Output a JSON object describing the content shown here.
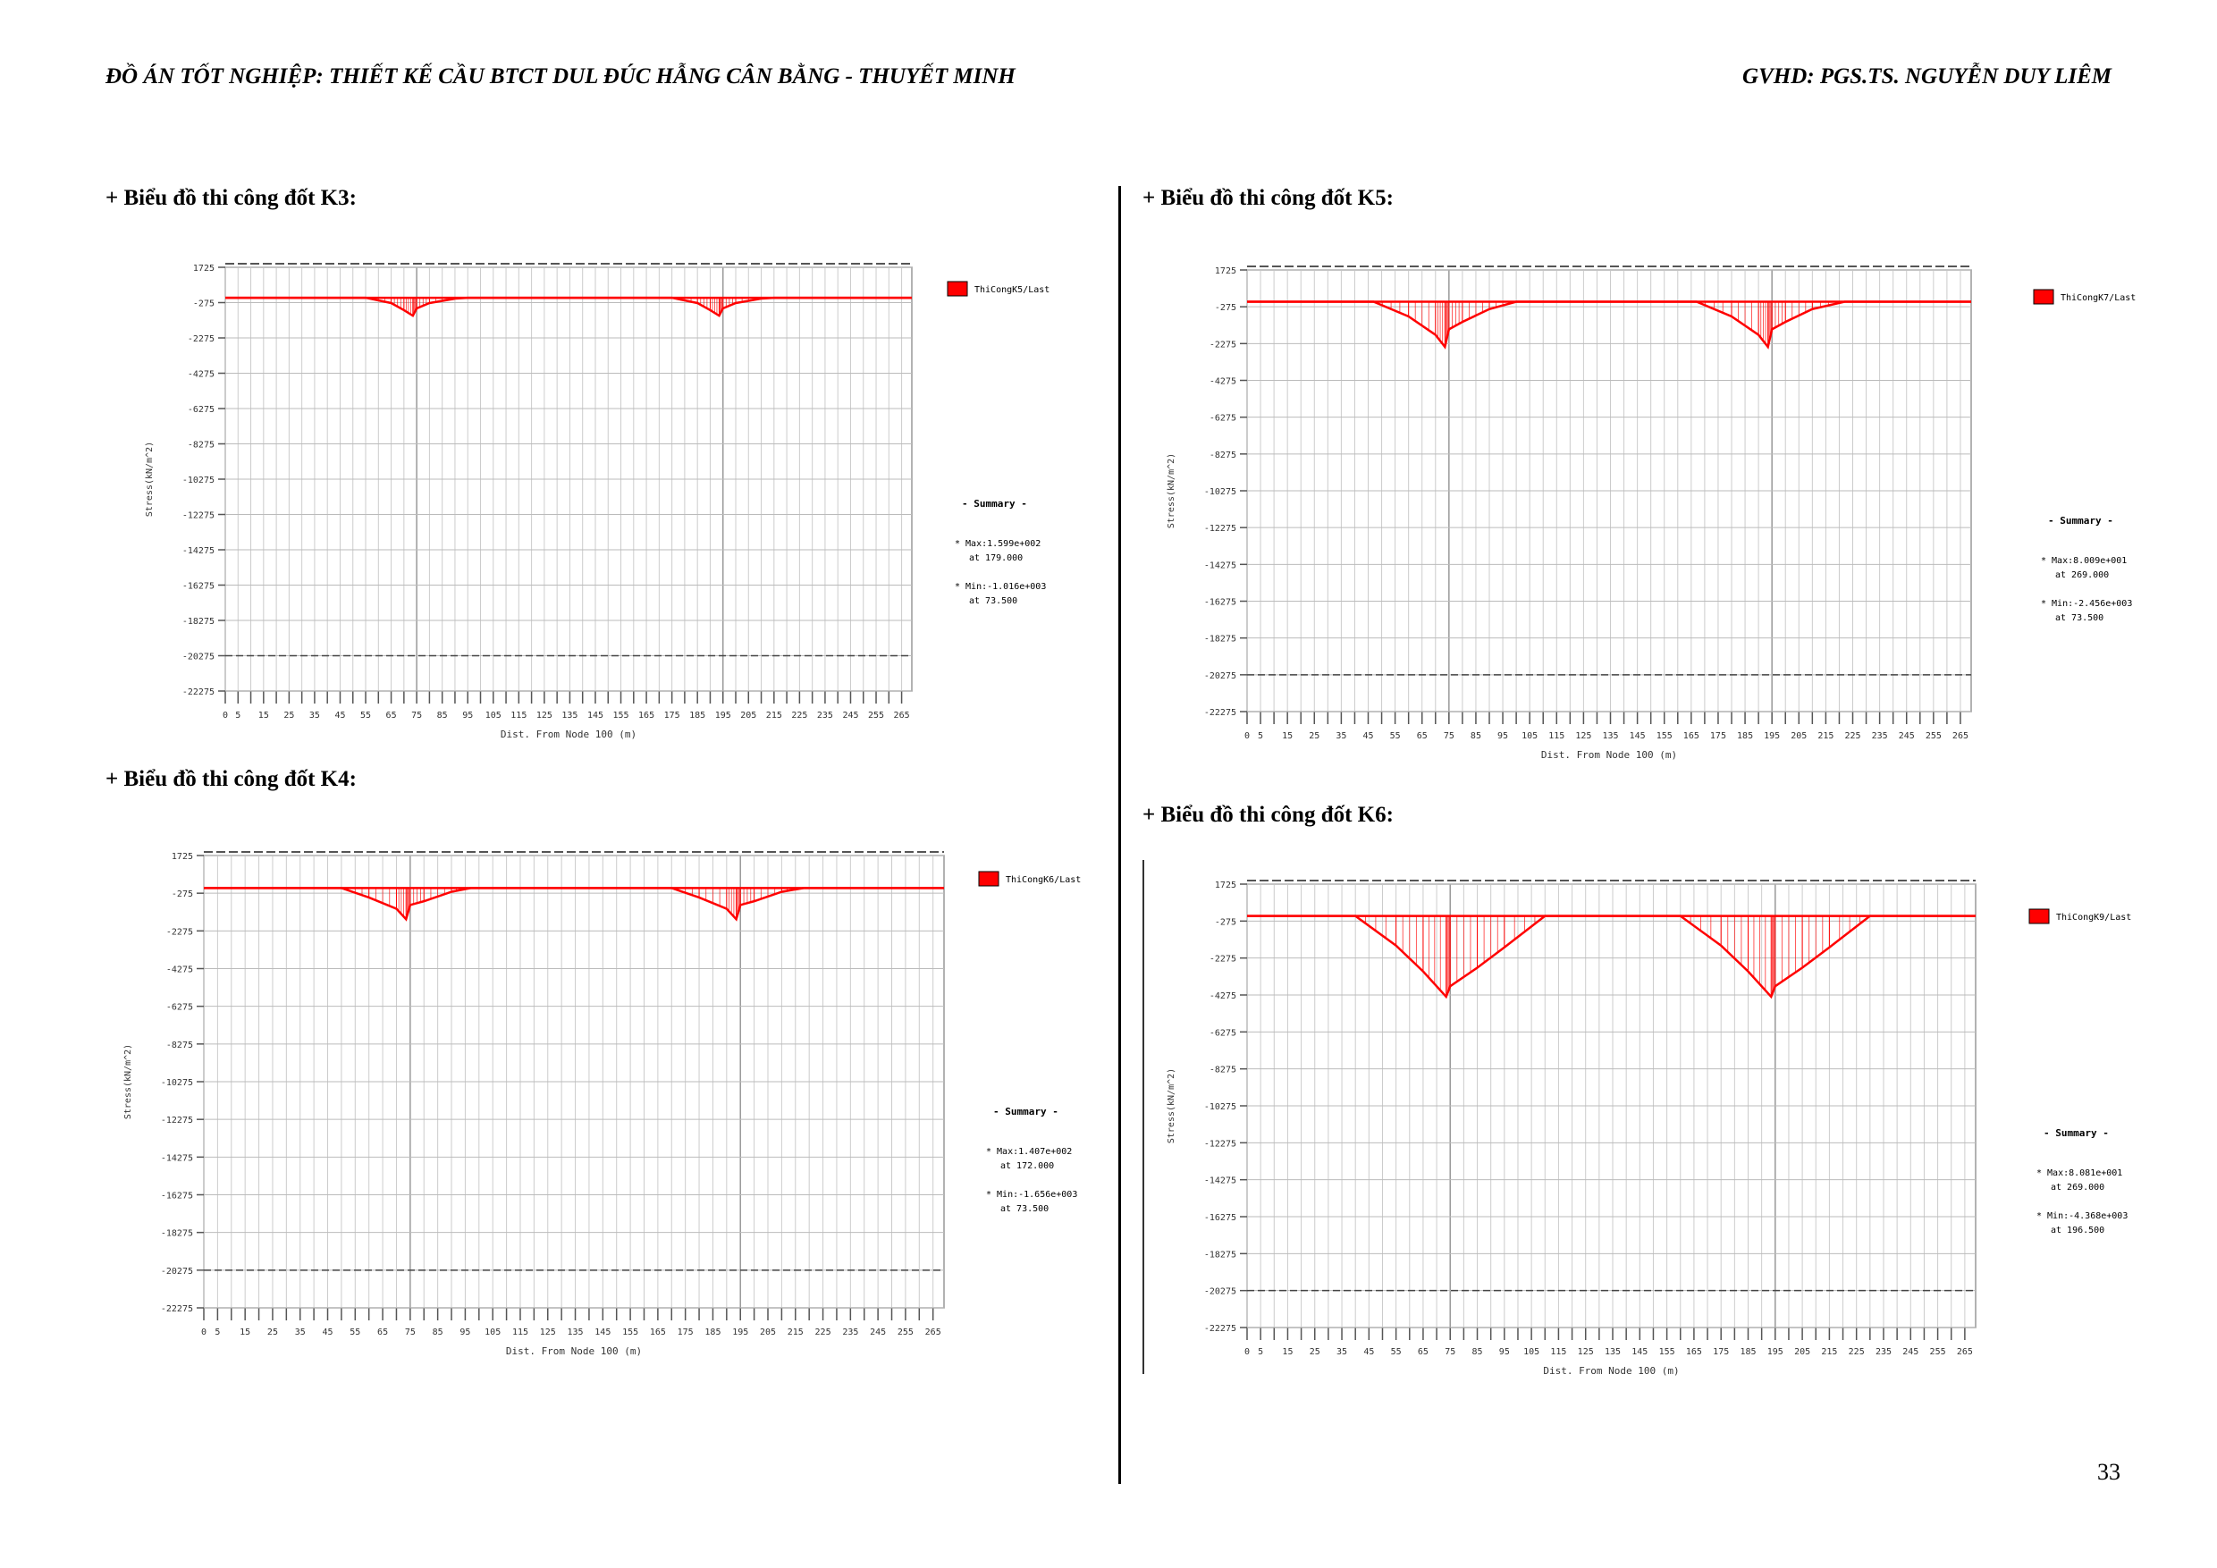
{
  "header": {
    "left_title": "ĐỒ ÁN TỐT NGHIỆP: THIẾT KẾ CẦU BTCT DUL ĐÚC HẪNG CÂN BẰNG - THUYẾT MINH",
    "right_title": "GVHD: PGS.TS. NGUYỄN DUY LIÊM"
  },
  "sections": [
    {
      "title": "+ Biểu đồ thi công đốt K3:"
    },
    {
      "title": "+ Biểu đồ thi công đốt K4:"
    },
    {
      "title": "+ Biểu đồ thi công đốt K5:"
    },
    {
      "title": "+ Biểu đồ thi công đốt K6:"
    }
  ],
  "page_number": "33",
  "chart_data": [
    {
      "type": "line",
      "series": [
        {
          "name": "ThiCongK5/Last",
          "color": "#ff0000",
          "x": [
            0,
            55,
            65,
            70,
            73.5,
            75,
            80,
            90,
            95,
            175,
            185,
            190,
            193.5,
            195,
            200,
            210,
            215,
            269
          ],
          "y": [
            0,
            0,
            -300,
            -700,
            -1016,
            -600,
            -300,
            -50,
            0,
            0,
            -300,
            -700,
            -1016,
            -600,
            -300,
            -50,
            0,
            0
          ]
        }
      ],
      "xlabel": "Dist. From Node 100 (m)",
      "ylabel": "Stress(kN/m^2)",
      "xticks": [
        "0",
        "5",
        "15",
        "25",
        "35",
        "45",
        "55",
        "65",
        "75",
        "85",
        "95",
        "105",
        "115",
        "125",
        "135",
        "145",
        "155",
        "165",
        "175",
        "185",
        "195",
        "205",
        "215",
        "225",
        "235",
        "245",
        "255",
        "265"
      ],
      "yticks": [
        "1725",
        "-275",
        "-2275",
        "-4275",
        "-6275",
        "-8275",
        "-10275",
        "-12275",
        "-14275",
        "-16275",
        "-18275",
        "-20275",
        "-22275"
      ],
      "xlim": [
        0,
        269
      ],
      "ylim": [
        -22275,
        1725
      ],
      "legend": "top-right",
      "summary": {
        "title": "- Summary -",
        "max": "* Max:1.599e+002",
        "max_at": "at 179.000",
        "min": "* Min:-1.016e+003",
        "min_at": "at 73.500"
      }
    },
    {
      "type": "line",
      "series": [
        {
          "name": "ThiCongK6/Last",
          "color": "#ff0000",
          "x": [
            0,
            50,
            60,
            70,
            73.5,
            75,
            80,
            90,
            97,
            170,
            180,
            190,
            193.5,
            195,
            200,
            210,
            218,
            269
          ],
          "y": [
            0,
            0,
            -500,
            -1100,
            -1656,
            -900,
            -700,
            -200,
            0,
            0,
            -500,
            -1100,
            -1656,
            -900,
            -700,
            -200,
            0,
            0
          ]
        }
      ],
      "xlabel": "Dist. From Node 100 (m)",
      "ylabel": "Stress(kN/m^2)",
      "xticks": [
        "0",
        "5",
        "15",
        "25",
        "35",
        "45",
        "55",
        "65",
        "75",
        "85",
        "95",
        "105",
        "115",
        "125",
        "135",
        "145",
        "155",
        "165",
        "175",
        "185",
        "195",
        "205",
        "215",
        "225",
        "235",
        "245",
        "255",
        "265"
      ],
      "yticks": [
        "1725",
        "-275",
        "-2275",
        "-4275",
        "-6275",
        "-8275",
        "-10275",
        "-12275",
        "-14275",
        "-16275",
        "-18275",
        "-20275",
        "-22275"
      ],
      "xlim": [
        0,
        269
      ],
      "ylim": [
        -22275,
        1725
      ],
      "legend": "top-right",
      "summary": {
        "title": "- Summary -",
        "max": "* Max:1.407e+002",
        "max_at": "at 172.000",
        "min": "* Min:-1.656e+003",
        "min_at": "at 73.500"
      }
    },
    {
      "type": "line",
      "series": [
        {
          "name": "ThiCongK7/Last",
          "color": "#ff0000",
          "x": [
            0,
            47,
            60,
            70,
            73.5,
            75,
            80,
            90,
            100,
            167,
            180,
            190,
            193.5,
            195,
            200,
            210,
            222,
            269
          ],
          "y": [
            0,
            0,
            -800,
            -1800,
            -2456,
            -1500,
            -1100,
            -400,
            0,
            0,
            -800,
            -1800,
            -2456,
            -1500,
            -1100,
            -400,
            0,
            0
          ]
        }
      ],
      "xlabel": "Dist. From Node 100 (m)",
      "ylabel": "Stress(kN/m^2)",
      "xticks": [
        "0",
        "5",
        "15",
        "25",
        "35",
        "45",
        "55",
        "65",
        "75",
        "85",
        "95",
        "105",
        "115",
        "125",
        "135",
        "145",
        "155",
        "165",
        "175",
        "185",
        "195",
        "205",
        "215",
        "225",
        "235",
        "245",
        "255",
        "265"
      ],
      "yticks": [
        "1725",
        "-275",
        "-2275",
        "-4275",
        "-6275",
        "-8275",
        "-10275",
        "-12275",
        "-14275",
        "-16275",
        "-18275",
        "-20275",
        "-22275"
      ],
      "xlim": [
        0,
        269
      ],
      "ylim": [
        -22275,
        1725
      ],
      "legend": "top-right",
      "summary": {
        "title": "- Summary -",
        "max": "* Max:8.009e+001",
        "max_at": "at 269.000",
        "min": "* Min:-2.456e+003",
        "min_at": "at 73.500"
      }
    },
    {
      "type": "line",
      "series": [
        {
          "name": "ThiCongK9/Last",
          "color": "#ff0000",
          "x": [
            0,
            40,
            55,
            65,
            73.5,
            75,
            85,
            95,
            110,
            160,
            175,
            185,
            193.5,
            195,
            205,
            215,
            230,
            269
          ],
          "y": [
            0,
            0,
            -1600,
            -3000,
            -4368,
            -3800,
            -2800,
            -1700,
            0,
            0,
            -1600,
            -3000,
            -4368,
            -3800,
            -2800,
            -1700,
            0,
            0
          ]
        }
      ],
      "xlabel": "Dist. From Node 100 (m)",
      "ylabel": "Stress(kN/m^2)",
      "xticks": [
        "0",
        "5",
        "15",
        "25",
        "35",
        "45",
        "55",
        "65",
        "75",
        "85",
        "95",
        "105",
        "115",
        "125",
        "135",
        "145",
        "155",
        "165",
        "175",
        "185",
        "195",
        "205",
        "215",
        "225",
        "235",
        "245",
        "255",
        "265"
      ],
      "yticks": [
        "1725",
        "-275",
        "-2275",
        "-4275",
        "-6275",
        "-8275",
        "-10275",
        "-12275",
        "-14275",
        "-16275",
        "-18275",
        "-20275",
        "-22275"
      ],
      "xlim": [
        0,
        269
      ],
      "ylim": [
        -22275,
        1725
      ],
      "legend": "top-right",
      "summary": {
        "title": "- Summary -",
        "max": "* Max:8.081e+001",
        "max_at": "at 269.000",
        "min": "* Min:-4.368e+003",
        "min_at": "at 196.500"
      }
    }
  ]
}
